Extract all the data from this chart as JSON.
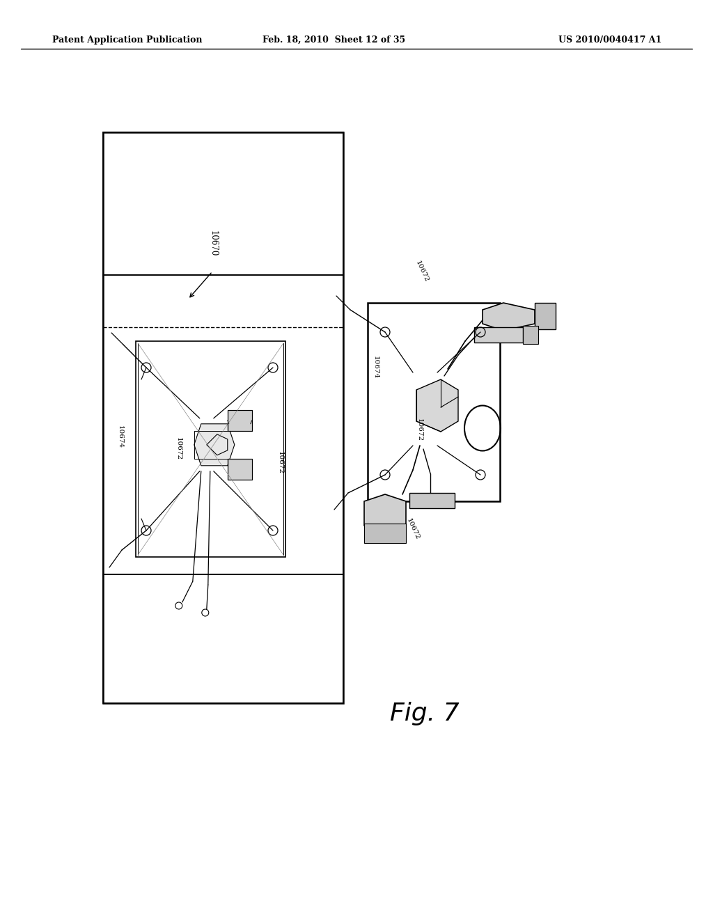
{
  "background_color": "#ffffff",
  "header_left": "Patent Application Publication",
  "header_mid": "Feb. 18, 2010  Sheet 12 of 35",
  "header_right": "US 2010/0040417 A1",
  "figure_label": "Fig. 7"
}
